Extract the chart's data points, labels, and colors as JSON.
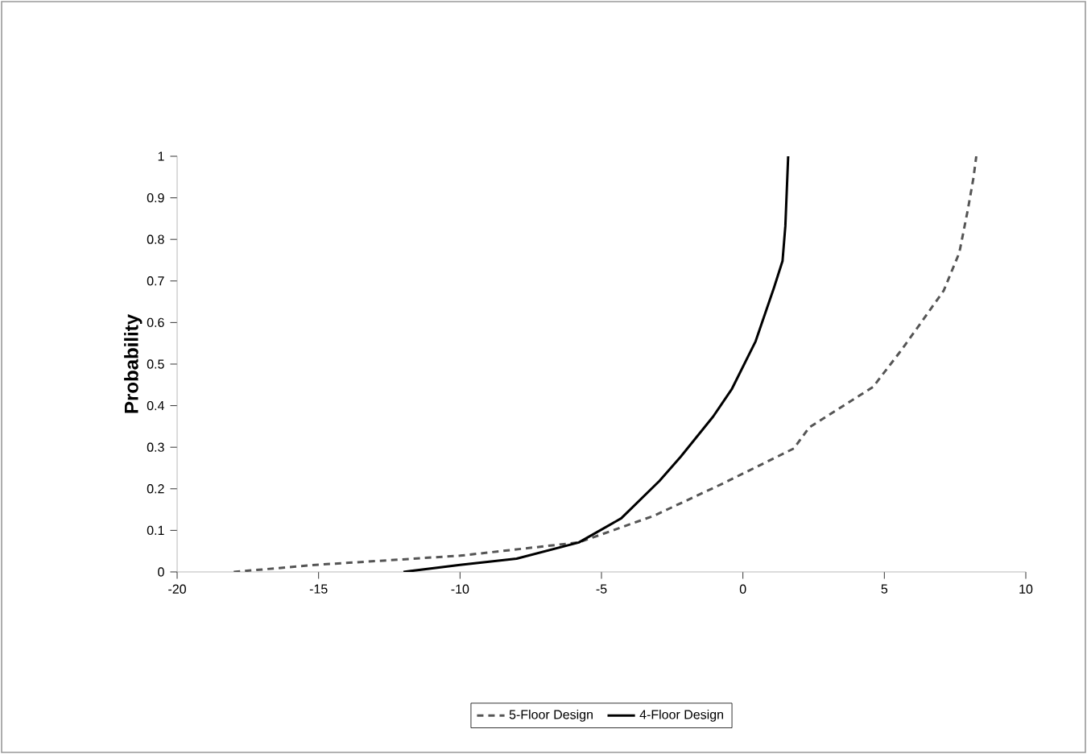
{
  "chart_data": {
    "type": "line",
    "ylabel": "Probability",
    "xlim": [
      -20,
      10
    ],
    "ylim": [
      0,
      1
    ],
    "xticks": [
      -20,
      -15,
      -10,
      -5,
      0,
      5,
      10
    ],
    "yticks": [
      0,
      0.1,
      0.2,
      0.3,
      0.4,
      0.5,
      0.6,
      0.7,
      0.8,
      0.9,
      1
    ],
    "grid": false,
    "legend": "bottom",
    "marker": "none",
    "series": [
      {
        "name": "5-Floor Design",
        "color": "#555555",
        "line_style": "dashed",
        "x": [
          -18.0,
          -15.1,
          -10.0,
          -5.8,
          -3.15,
          -0.7,
          1.8,
          2.35,
          4.6,
          5.55,
          6.3,
          7.1,
          7.65,
          7.95,
          8.15,
          8.25
        ],
        "values": [
          0,
          0.017,
          0.039,
          0.071,
          0.135,
          0.213,
          0.297,
          0.348,
          0.445,
          0.529,
          0.6,
          0.677,
          0.768,
          0.871,
          0.948,
          1.0
        ]
      },
      {
        "name": "4-Floor Design",
        "color": "#000000",
        "line_style": "solid",
        "x": [
          -12.0,
          -10.0,
          -8.0,
          -5.8,
          -4.3,
          -2.95,
          -2.2,
          -1.05,
          -0.4,
          0.45,
          1.1,
          1.4,
          1.5,
          1.6
        ],
        "values": [
          0,
          0.017,
          0.032,
          0.071,
          0.129,
          0.219,
          0.277,
          0.374,
          0.439,
          0.555,
          0.684,
          0.748,
          0.832,
          1.0
        ]
      }
    ]
  }
}
